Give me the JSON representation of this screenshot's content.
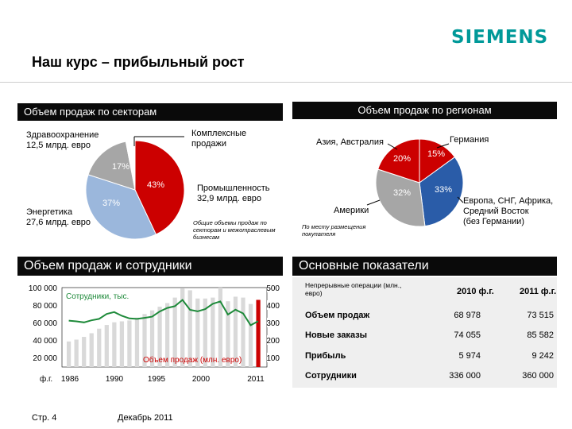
{
  "header": {
    "logo": "SIEMENS",
    "title": "Наш курс – прибыльный рост"
  },
  "sector_panel": {
    "title": "Объем продаж по секторам",
    "label_health": "Здравоохранение\n12,5 млрд. евро",
    "label_complex": "Комплексные\nпродажи",
    "label_industry": "Промышленность\n32,9 млрд. евро",
    "label_energy": "Энергетика\n27,6 млрд. евро",
    "note": "Общие объемы продаж по секторам и межотраслевым бизнесам"
  },
  "region_panel": {
    "title": "Объем продаж по регионам",
    "label_asia": "Азия, Австралия",
    "label_germany": "Германия",
    "label_americas": "Америки",
    "label_europe": "Европа, СНГ, Африка,\nСредний Восток\n(без Германии)",
    "note": "По месту размещения покупателя"
  },
  "employees_panel": {
    "title": "Объем продаж и сотрудники",
    "series_employees_label": "Сотрудники, тыс.",
    "series_sales_label": "Объем продаж (млн. евро)",
    "fy_label": "ф.г."
  },
  "kpi_panel": {
    "title": "Основные показатели",
    "col_label": "Непрерывные операции (млн., евро)",
    "col_2010": "2010 ф.г.",
    "col_2011": "2011 ф.г.",
    "rows": [
      {
        "label": "Объем продаж",
        "v2010": "68 978",
        "v2011": "73 515"
      },
      {
        "label": "Новые заказы",
        "v2010": "74 055",
        "v2011": "85 582"
      },
      {
        "label": "Прибыль",
        "v2010": "5 974",
        "v2011": "9 242"
      },
      {
        "label": "Сотрудники",
        "v2010": "336 000",
        "v2011": "360 000"
      }
    ]
  },
  "footer": {
    "page": "Стр. 4",
    "date": "Декабрь 2011"
  },
  "colors": {
    "logo": "#009999",
    "red": "#cc0000",
    "blue_light": "#9bb7dc",
    "blue_dark": "#2a5ca8",
    "gray": "#a6a6a6",
    "green_line": "#1e8a3a"
  },
  "chart_data": [
    {
      "type": "pie",
      "slices": [
        {
          "label": "43%",
          "value": 43,
          "color": "#cc0000"
        },
        {
          "label": "37%",
          "value": 37,
          "color": "#9bb7dc"
        },
        {
          "label": "17%",
          "value": 17,
          "color": "#a6a6a6"
        },
        {
          "label": "",
          "value": 3,
          "color": "#ffffff"
        }
      ]
    },
    {
      "type": "pie",
      "slices": [
        {
          "label": "15%",
          "value": 15,
          "color": "#cc0000"
        },
        {
          "label": "33%",
          "value": 33,
          "color": "#2a5ca8"
        },
        {
          "label": "32%",
          "value": 32,
          "color": "#a6a6a6"
        },
        {
          "label": "20%",
          "value": 20,
          "color": "#cc0000"
        }
      ]
    },
    {
      "type": "bar",
      "xlabel_ticks": [
        "1986",
        "1990",
        "1995",
        "2000",
        "2011"
      ],
      "left_axis_ticks": [
        "100 000",
        "80 000",
        "60 000",
        "40 000",
        "20 000"
      ],
      "right_axis_ticks": [
        "500",
        "400",
        "300",
        "200",
        "100"
      ],
      "x": [
        1986,
        1987,
        1988,
        1989,
        1990,
        1991,
        1992,
        1993,
        1994,
        1995,
        1996,
        1997,
        1998,
        1999,
        2000,
        2001,
        2002,
        2003,
        2004,
        2005,
        2006,
        2007,
        2008,
        2009,
        2010,
        2011
      ],
      "sales": [
        28000,
        30000,
        33000,
        37000,
        42000,
        46000,
        49000,
        50000,
        51000,
        54000,
        58000,
        62000,
        66000,
        70000,
        76000,
        86000,
        84000,
        75000,
        75000,
        76000,
        87000,
        72000,
        77000,
        76000,
        69000,
        73515
      ],
      "employees": [
        363,
        359,
        353,
        365,
        373,
        402,
        413,
        391,
        376,
        373,
        379,
        386,
        416,
        437,
        447,
        484,
        426,
        417,
        430,
        461,
        475,
        398,
        427,
        405,
        336,
        360
      ],
      "left_ylim": [
        0,
        100000
      ],
      "right_ylim": [
        0,
        500
      ]
    }
  ]
}
